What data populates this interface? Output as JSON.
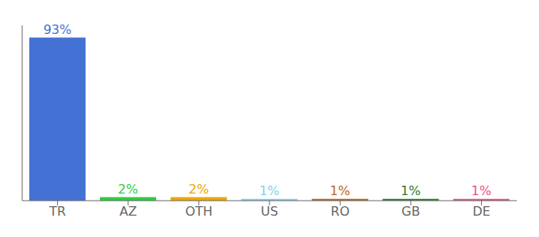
{
  "chart_data": {
    "type": "bar",
    "categories": [
      "TR",
      "AZ",
      "OTH",
      "US",
      "RO",
      "GB",
      "DE"
    ],
    "values": [
      93,
      2,
      2,
      1,
      1,
      1,
      1
    ],
    "colors": [
      "#4472d4",
      "#2ecc40",
      "#f0a500",
      "#87ceeb",
      "#b8651a",
      "#2d7a2d",
      "#e75480"
    ],
    "ylim": [
      0,
      100
    ],
    "grid": false,
    "data_labels": true,
    "value_labels": [
      "93%",
      "2%",
      "2%",
      "1%",
      "1%",
      "1%",
      "1%"
    ],
    "tick_labels": "x"
  }
}
